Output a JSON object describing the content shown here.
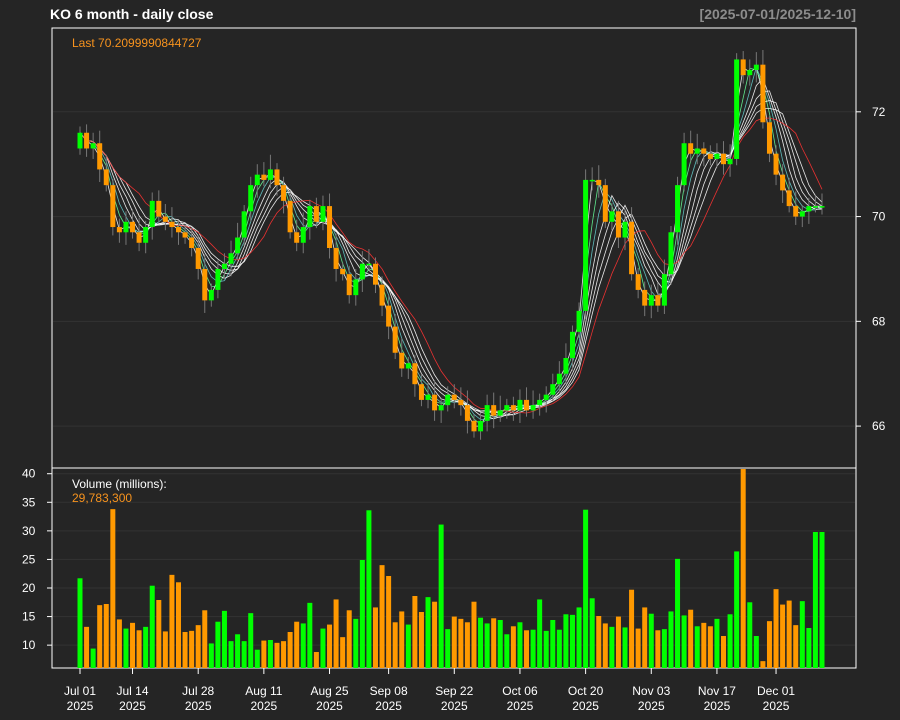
{
  "header": {
    "title": "KO  6 month - daily close",
    "range": "[2025-07-01/2025-12-10]"
  },
  "colors": {
    "background": "#252525",
    "up": "#00ff00",
    "down": "#ff9900",
    "frame": "#ffffff",
    "grid": "#333333",
    "ma_white": "#ffffff",
    "ma_green": "#66ff99",
    "ma_cyan": "#66cccc",
    "ma_red": "#ff3333",
    "label_orange": "#f7931e",
    "text": "#ffffff"
  },
  "chart_data": [
    {
      "type": "candlestick",
      "panel": "price",
      "last_label": "Last 70.2099990844727",
      "ylim": [
        65.2,
        73.6
      ],
      "yticks": [
        66,
        68,
        70,
        72
      ],
      "moving_averages": {
        "count": 8,
        "colors_note": "white/green/cyan/red ribbon"
      },
      "dates": [
        "2025-07-01",
        "2025-07-02",
        "2025-07-03",
        "2025-07-07",
        "2025-07-08",
        "2025-07-09",
        "2025-07-10",
        "2025-07-11",
        "2025-07-14",
        "2025-07-15",
        "2025-07-16",
        "2025-07-17",
        "2025-07-18",
        "2025-07-21",
        "2025-07-22",
        "2025-07-23",
        "2025-07-24",
        "2025-07-25",
        "2025-07-28",
        "2025-07-29",
        "2025-07-30",
        "2025-07-31",
        "2025-08-01",
        "2025-08-04",
        "2025-08-05",
        "2025-08-06",
        "2025-08-07",
        "2025-08-08",
        "2025-08-11",
        "2025-08-12",
        "2025-08-13",
        "2025-08-14",
        "2025-08-15",
        "2025-08-18",
        "2025-08-19",
        "2025-08-20",
        "2025-08-21",
        "2025-08-22",
        "2025-08-25",
        "2025-08-26",
        "2025-08-27",
        "2025-08-28",
        "2025-08-29",
        "2025-09-02",
        "2025-09-03",
        "2025-09-04",
        "2025-09-05",
        "2025-09-08",
        "2025-09-09",
        "2025-09-10",
        "2025-09-11",
        "2025-09-12",
        "2025-09-15",
        "2025-09-16",
        "2025-09-17",
        "2025-09-18",
        "2025-09-19",
        "2025-09-22",
        "2025-09-23",
        "2025-09-24",
        "2025-09-25",
        "2025-09-26",
        "2025-09-29",
        "2025-09-30",
        "2025-10-01",
        "2025-10-02",
        "2025-10-03",
        "2025-10-06",
        "2025-10-07",
        "2025-10-08",
        "2025-10-09",
        "2025-10-10",
        "2025-10-13",
        "2025-10-14",
        "2025-10-15",
        "2025-10-16",
        "2025-10-17",
        "2025-10-20",
        "2025-10-21",
        "2025-10-22",
        "2025-10-23",
        "2025-10-24",
        "2025-10-27",
        "2025-10-28",
        "2025-10-29",
        "2025-10-30",
        "2025-10-31",
        "2025-11-03",
        "2025-11-04",
        "2025-11-05",
        "2025-11-06",
        "2025-11-07",
        "2025-11-10",
        "2025-11-11",
        "2025-11-12",
        "2025-11-13",
        "2025-11-14",
        "2025-11-17",
        "2025-11-18",
        "2025-11-19",
        "2025-11-20",
        "2025-11-21",
        "2025-11-24",
        "2025-11-25",
        "2025-11-26",
        "2025-11-28",
        "2025-12-01",
        "2025-12-02",
        "2025-12-03",
        "2025-12-04",
        "2025-12-05",
        "2025-12-08",
        "2025-12-09",
        "2025-12-10"
      ],
      "close": [
        71.6,
        71.3,
        71.4,
        70.9,
        70.6,
        69.8,
        69.7,
        69.9,
        69.7,
        69.5,
        69.8,
        70.3,
        70.0,
        69.9,
        69.8,
        69.7,
        69.6,
        69.4,
        69.0,
        68.4,
        68.6,
        69.0,
        69.1,
        69.3,
        69.6,
        70.1,
        70.6,
        70.8,
        70.7,
        70.9,
        70.6,
        70.3,
        69.7,
        69.5,
        69.8,
        70.2,
        69.9,
        70.2,
        69.4,
        69.0,
        68.9,
        68.5,
        68.8,
        69.1,
        69.1,
        68.7,
        68.3,
        67.9,
        67.4,
        67.1,
        67.2,
        66.8,
        66.5,
        66.6,
        66.3,
        66.4,
        66.6,
        66.5,
        66.4,
        66.1,
        65.9,
        66.1,
        66.4,
        66.2,
        66.3,
        66.4,
        66.3,
        66.5,
        66.3,
        66.4,
        66.5,
        66.6,
        66.8,
        67.0,
        67.3,
        67.8,
        68.2,
        70.7,
        70.7,
        70.6,
        69.9,
        70.1,
        69.6,
        69.9,
        68.9,
        68.6,
        68.3,
        68.5,
        68.3,
        68.9,
        69.7,
        70.6,
        71.4,
        71.2,
        71.3,
        71.2,
        71.1,
        71.2,
        71.0,
        71.1,
        73.0,
        72.7,
        72.8,
        72.9,
        71.8,
        71.2,
        70.8,
        70.5,
        70.2,
        70.0,
        70.1,
        70.2,
        70.2,
        70.2
      ],
      "volume_millions": [
        21.7,
        13.2,
        9.4,
        17.0,
        17.2,
        33.8,
        14.5,
        12.9,
        13.9,
        12.6,
        13.2,
        20.4,
        17.9,
        12.4,
        22.3,
        21.0,
        12.3,
        12.5,
        13.5,
        16.1,
        10.3,
        14.1,
        16.0,
        10.7,
        11.9,
        10.7,
        15.6,
        9.2,
        10.8,
        10.9,
        10.4,
        10.7,
        12.3,
        14.1,
        13.8,
        17.4,
        8.8,
        12.9,
        13.6,
        18.0,
        11.4,
        16.1,
        14.6,
        24.9,
        33.6,
        16.6,
        24.0,
        22.1,
        14.0,
        15.9,
        13.6,
        18.6,
        15.8,
        18.4,
        17.6,
        31.1,
        12.8,
        15.0,
        14.6,
        14.0,
        17.6,
        14.8,
        13.8,
        14.7,
        14.4,
        11.9,
        13.3,
        14.0,
        12.6,
        12.7,
        18.0,
        12.5,
        14.4,
        12.7,
        15.4,
        15.3,
        16.6,
        33.7,
        18.2,
        15.1,
        13.8,
        13.2,
        15.0,
        13.1,
        19.7,
        12.9,
        16.6,
        15.5,
        12.6,
        12.8,
        15.9,
        25.1,
        15.2,
        16.2,
        13.3,
        13.9,
        13.3,
        14.6,
        11.6,
        15.4,
        26.4,
        49.3,
        17.5,
        11.6,
        7.2,
        14.2,
        19.8,
        17.1,
        17.8,
        13.5,
        17.7,
        13.0,
        29.8,
        29.8
      ],
      "volume_label": "Volume (millions):",
      "volume_last": "29,783,300",
      "volume_yticks": [
        10,
        15,
        20,
        25,
        30,
        35,
        40
      ],
      "x_ticks": [
        {
          "date": "2025-07-01",
          "label": "Jul 01",
          "year": "2025"
        },
        {
          "date": "2025-07-14",
          "label": "Jul 14",
          "year": "2025"
        },
        {
          "date": "2025-07-28",
          "label": "Jul 28",
          "year": "2025"
        },
        {
          "date": "2025-08-11",
          "label": "Aug 11",
          "year": "2025"
        },
        {
          "date": "2025-08-25",
          "label": "Aug 25",
          "year": "2025"
        },
        {
          "date": "2025-09-08",
          "label": "Sep 08",
          "year": "2025"
        },
        {
          "date": "2025-09-22",
          "label": "Sep 22",
          "year": "2025"
        },
        {
          "date": "2025-10-06",
          "label": "Oct 06",
          "year": "2025"
        },
        {
          "date": "2025-10-20",
          "label": "Oct 20",
          "year": "2025"
        },
        {
          "date": "2025-11-03",
          "label": "Nov 03",
          "year": "2025"
        },
        {
          "date": "2025-11-17",
          "label": "Nov 17",
          "year": "2025"
        },
        {
          "date": "2025-12-01",
          "label": "Dec 01",
          "year": "2025"
        }
      ]
    }
  ]
}
